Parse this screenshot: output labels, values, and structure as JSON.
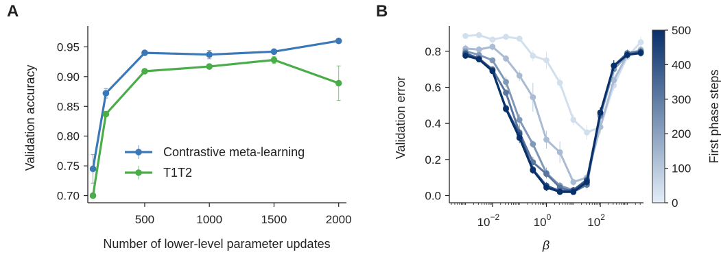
{
  "panels": {
    "a": {
      "label": "A"
    },
    "b": {
      "label": "B"
    }
  },
  "chart_data": [
    {
      "type": "line",
      "panel": "A",
      "xlabel": "Number of lower-level parameter updates",
      "ylabel": "Validation accuracy",
      "xlim": [
        60,
        2060
      ],
      "ylim": [
        0.688,
        0.985
      ],
      "xticks": [
        500,
        1000,
        1500,
        2000
      ],
      "xtick_labels": [
        "500",
        "1000",
        "1500",
        "2000"
      ],
      "yticks": [
        0.7,
        0.75,
        0.8,
        0.85,
        0.9,
        0.95
      ],
      "ytick_labels": [
        "0.70",
        "0.75",
        "0.80",
        "0.85",
        "0.90",
        "0.95"
      ],
      "legend_position": "lower-center",
      "series": [
        {
          "name": "Contrastive meta-learning",
          "color": "#3a78b8",
          "x": [
            100,
            200,
            500,
            1000,
            1500,
            2000
          ],
          "y": [
            0.745,
            0.872,
            0.94,
            0.937,
            0.942,
            0.96
          ],
          "err": [
            0.024,
            0.008,
            0.002,
            0.007,
            0.004,
            0.002
          ]
        },
        {
          "name": "T1T2",
          "color": "#4aad4a",
          "x": [
            100,
            200,
            500,
            1000,
            1500,
            2000
          ],
          "y": [
            0.7,
            0.837,
            0.909,
            0.917,
            0.928,
            0.889
          ],
          "err": [
            0.002,
            0.004,
            0.003,
            0.004,
            0.006,
            0.029
          ]
        }
      ]
    },
    {
      "type": "line",
      "panel": "B",
      "xlabel": "β",
      "ylabel": "Validation error",
      "xscale": "log",
      "xlim_log10": [
        -3.6,
        3.6
      ],
      "ylim": [
        -0.04,
        0.94
      ],
      "xticks_log10": [
        -2,
        0,
        2
      ],
      "xtick_labels": [
        {
          "base": "10",
          "exp": "−2"
        },
        {
          "base": "10",
          "exp": "0"
        },
        {
          "base": "10",
          "exp": "2"
        }
      ],
      "yticks": [
        0.0,
        0.2,
        0.4,
        0.6,
        0.8
      ],
      "ytick_labels": [
        "0.0",
        "0.2",
        "0.4",
        "0.6",
        "0.8"
      ],
      "colorbar": {
        "label": "First phase steps",
        "min": 0,
        "max": 500,
        "ticks": [
          0,
          100,
          200,
          300,
          400,
          500
        ],
        "tick_labels": [
          "0",
          "100",
          "200",
          "300",
          "400",
          "500"
        ],
        "color_low": "#e4eef8",
        "color_high": "#08306b"
      },
      "x_log10": [
        -3,
        -2.5,
        -2,
        -1.5,
        -1,
        -0.5,
        0,
        0.5,
        1,
        1.5,
        2,
        2.5,
        3,
        3.5
      ],
      "series": [
        {
          "steps": 0,
          "y": [
            0.885,
            0.89,
            0.865,
            0.88,
            0.87,
            0.775,
            0.75,
            0.625,
            0.42,
            0.35,
            0.38,
            0.61,
            0.77,
            0.85
          ],
          "err": [
            0.01,
            0.01,
            0.01,
            0.01,
            0.01,
            0.03,
            0.05,
            0.03,
            0.03,
            0.04,
            0.04,
            0.03,
            0.02,
            0.03
          ]
        },
        {
          "steps": 100,
          "y": [
            0.815,
            0.81,
            0.825,
            0.76,
            0.665,
            0.545,
            0.31,
            0.24,
            0.075,
            0.1,
            0.38,
            0.64,
            0.78,
            0.81
          ],
          "err": [
            0.02,
            0.02,
            0.02,
            0.02,
            0.03,
            0.08,
            0.05,
            0.06,
            0.02,
            0.02,
            0.03,
            0.03,
            0.02,
            0.02
          ]
        },
        {
          "steps": 200,
          "y": [
            0.8,
            0.78,
            0.75,
            0.63,
            0.42,
            0.285,
            0.125,
            0.055,
            0.03,
            0.09,
            0.44,
            0.7,
            0.78,
            0.8
          ],
          "err": [
            0.01,
            0.01,
            0.01,
            0.03,
            0.03,
            0.02,
            0.03,
            0.02,
            0.01,
            0.02,
            0.03,
            0.03,
            0.02,
            0.02
          ]
        },
        {
          "steps": 300,
          "y": [
            0.79,
            0.76,
            0.7,
            0.57,
            0.35,
            0.185,
            0.12,
            0.045,
            0.02,
            0.06,
            0.45,
            0.72,
            0.79,
            0.8
          ],
          "err": [
            0.01,
            0.01,
            0.01,
            0.02,
            0.04,
            0.03,
            0.02,
            0.02,
            0.01,
            0.02,
            0.03,
            0.03,
            0.02,
            0.02
          ]
        },
        {
          "steps": 400,
          "y": [
            0.785,
            0.76,
            0.695,
            0.485,
            0.34,
            0.145,
            0.055,
            0.025,
            0.03,
            0.085,
            0.46,
            0.72,
            0.78,
            0.795
          ],
          "err": [
            0.01,
            0.01,
            0.01,
            0.02,
            0.03,
            0.02,
            0.02,
            0.01,
            0.01,
            0.02,
            0.03,
            0.03,
            0.02,
            0.02
          ]
        },
        {
          "steps": 500,
          "y": [
            0.775,
            0.755,
            0.69,
            0.48,
            0.32,
            0.14,
            0.045,
            0.02,
            0.02,
            0.075,
            0.46,
            0.72,
            0.78,
            0.79
          ],
          "err": [
            0.01,
            0.01,
            0.01,
            0.02,
            0.03,
            0.02,
            0.02,
            0.01,
            0.01,
            0.02,
            0.03,
            0.03,
            0.02,
            0.02
          ]
        }
      ]
    }
  ]
}
